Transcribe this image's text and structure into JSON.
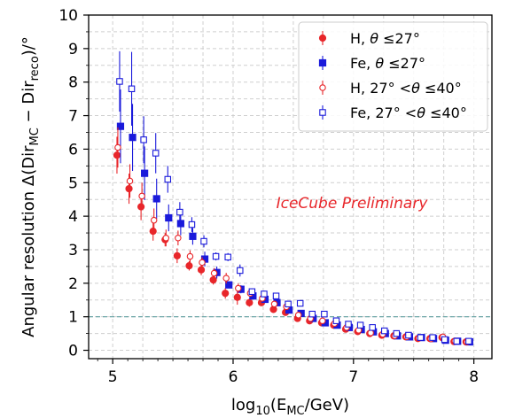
{
  "chart_data": {
    "type": "scatter",
    "x_axis": {
      "label_pre": "log",
      "label_sub": "10",
      "label_mid": "(E",
      "label_sub2": "MC",
      "label_post": "/GeV)",
      "range": [
        4.8,
        8.15
      ],
      "ticks": [
        "5",
        "6",
        "7",
        "8"
      ]
    },
    "y_axis": {
      "label_pre": "Angular resolution Δ(Dir",
      "label_sub": "MC",
      "label_mid": " − Dir",
      "label_sub2": "reco",
      "label_post": ")/°",
      "range": [
        -0.25,
        10
      ],
      "ticks": [
        "0",
        "1",
        "2",
        "3",
        "4",
        "5",
        "6",
        "7",
        "8",
        "9",
        "10"
      ]
    },
    "grid": true,
    "reference_line": {
      "y": 1,
      "color": "#5f9ea0"
    },
    "annotation": {
      "text": "IceCube Preliminary",
      "color": "#e8262a"
    },
    "legend": {
      "placement": "top-right",
      "entries": [
        {
          "series": 0,
          "label_pre": "H, ",
          "label_theta": "θ",
          "label_post": " ≤27°"
        },
        {
          "series": 1,
          "label_pre": "Fe, ",
          "label_theta": "θ",
          "label_post": " ≤27°"
        },
        {
          "series": 2,
          "label_pre": "H, 27° <",
          "label_theta": "θ",
          "label_post": " ≤40°"
        },
        {
          "series": 3,
          "label_pre": "Fe, 27° <",
          "label_theta": "θ",
          "label_post": " ≤40°"
        }
      ]
    },
    "series": [
      {
        "name": "H, θ ≤27°",
        "color": "#e8262a",
        "marker": "circle",
        "filled": true,
        "x": [
          5.05,
          5.15,
          5.25,
          5.35,
          5.45,
          5.55,
          5.65,
          5.75,
          5.85,
          5.95,
          6.05,
          6.15,
          6.25,
          6.35,
          6.45,
          6.55,
          6.65,
          6.75,
          6.85,
          6.95,
          7.05,
          7.15,
          7.25,
          7.35,
          7.45,
          7.55,
          7.65,
          7.75,
          7.85,
          7.95
        ],
        "y": [
          5.82,
          4.82,
          4.28,
          3.55,
          3.3,
          2.82,
          2.52,
          2.4,
          2.1,
          1.7,
          1.58,
          1.42,
          1.42,
          1.22,
          1.13,
          0.95,
          0.88,
          0.82,
          0.75,
          0.63,
          0.56,
          0.5,
          0.45,
          0.43,
          0.4,
          0.35,
          0.35,
          0.38,
          0.26,
          0.25
        ],
        "err": [
          0.55,
          0.45,
          0.4,
          0.28,
          0.2,
          0.22,
          0.14,
          0.16,
          0.14,
          0.16,
          0.22,
          0.12,
          0.1,
          0.08,
          0.08,
          0.07,
          0.07,
          0.06,
          0.06,
          0.05,
          0.05,
          0.05,
          0.04,
          0.04,
          0.04,
          0.04,
          0.04,
          0.04,
          0.03,
          0.03
        ]
      },
      {
        "name": "Fe, θ ≤27°",
        "color": "#1a1adb",
        "marker": "square",
        "filled": true,
        "x": [
          5.05,
          5.15,
          5.25,
          5.35,
          5.45,
          5.55,
          5.65,
          5.75,
          5.85,
          5.95,
          6.05,
          6.15,
          6.25,
          6.35,
          6.45,
          6.55,
          6.65,
          6.75,
          6.85,
          6.95,
          7.05,
          7.15,
          7.25,
          7.35,
          7.45,
          7.55,
          7.65,
          7.75,
          7.85,
          7.95
        ],
        "y": [
          6.68,
          6.35,
          5.28,
          4.52,
          3.95,
          3.78,
          3.4,
          2.72,
          2.32,
          1.95,
          1.82,
          1.62,
          1.52,
          1.42,
          1.2,
          1.1,
          0.95,
          0.82,
          0.75,
          0.68,
          0.62,
          0.55,
          0.5,
          0.43,
          0.4,
          0.38,
          0.35,
          0.3,
          0.27,
          0.25
        ],
        "err": [
          1.1,
          1.0,
          0.8,
          0.6,
          0.4,
          0.35,
          0.25,
          0.22,
          0.18,
          0.1,
          0.12,
          0.1,
          0.1,
          0.1,
          0.08,
          0.08,
          0.06,
          0.06,
          0.05,
          0.05,
          0.05,
          0.04,
          0.04,
          0.04,
          0.04,
          0.04,
          0.04,
          0.03,
          0.03,
          0.03
        ]
      },
      {
        "name": "H, 27° <θ ≤40°",
        "color": "#e8262a",
        "marker": "circle",
        "filled": false,
        "x": [
          5.05,
          5.15,
          5.25,
          5.35,
          5.45,
          5.55,
          5.65,
          5.75,
          5.85,
          5.95,
          6.05,
          6.15,
          6.25,
          6.35,
          6.45,
          6.55,
          6.65,
          6.75,
          6.85,
          6.95,
          7.05,
          7.15,
          7.25,
          7.35,
          7.45,
          7.55,
          7.65,
          7.75,
          7.85,
          7.95
        ],
        "y": [
          6.05,
          5.05,
          4.6,
          3.88,
          3.35,
          3.35,
          2.8,
          2.62,
          2.3,
          2.15,
          1.85,
          1.7,
          1.55,
          1.38,
          1.3,
          1.05,
          0.95,
          0.88,
          0.8,
          0.68,
          0.6,
          0.52,
          0.48,
          0.43,
          0.4,
          0.36,
          0.34,
          0.4,
          0.28,
          0.25
        ],
        "err": [
          0.6,
          0.5,
          0.4,
          0.35,
          0.25,
          0.22,
          0.18,
          0.16,
          0.15,
          0.16,
          0.14,
          0.1,
          0.1,
          0.08,
          0.08,
          0.07,
          0.06,
          0.06,
          0.05,
          0.05,
          0.05,
          0.04,
          0.04,
          0.04,
          0.04,
          0.04,
          0.04,
          0.04,
          0.03,
          0.03
        ]
      },
      {
        "name": "Fe, 27° <θ ≤40°",
        "color": "#1a1adb",
        "marker": "square",
        "filled": false,
        "x": [
          5.05,
          5.15,
          5.25,
          5.35,
          5.45,
          5.55,
          5.65,
          5.75,
          5.85,
          5.95,
          6.05,
          6.15,
          6.25,
          6.35,
          6.45,
          6.55,
          6.65,
          6.75,
          6.85,
          6.95,
          7.05,
          7.15,
          7.25,
          7.35,
          7.45,
          7.55,
          7.65,
          7.75,
          7.85,
          7.95
        ],
        "y": [
          8.02,
          7.8,
          6.28,
          5.88,
          5.1,
          4.12,
          3.75,
          3.25,
          2.8,
          2.78,
          2.38,
          1.75,
          1.68,
          1.62,
          1.38,
          1.4,
          1.08,
          1.08,
          0.88,
          0.78,
          0.75,
          0.68,
          0.58,
          0.5,
          0.45,
          0.38,
          0.38,
          0.32,
          0.27,
          0.27
        ],
        "err": [
          0.9,
          1.1,
          0.7,
          0.6,
          0.4,
          0.3,
          0.22,
          0.18,
          0.12,
          0.12,
          0.18,
          0.1,
          0.1,
          0.08,
          0.08,
          0.07,
          0.06,
          0.06,
          0.05,
          0.05,
          0.05,
          0.05,
          0.04,
          0.04,
          0.04,
          0.04,
          0.04,
          0.03,
          0.03,
          0.03
        ]
      }
    ]
  }
}
